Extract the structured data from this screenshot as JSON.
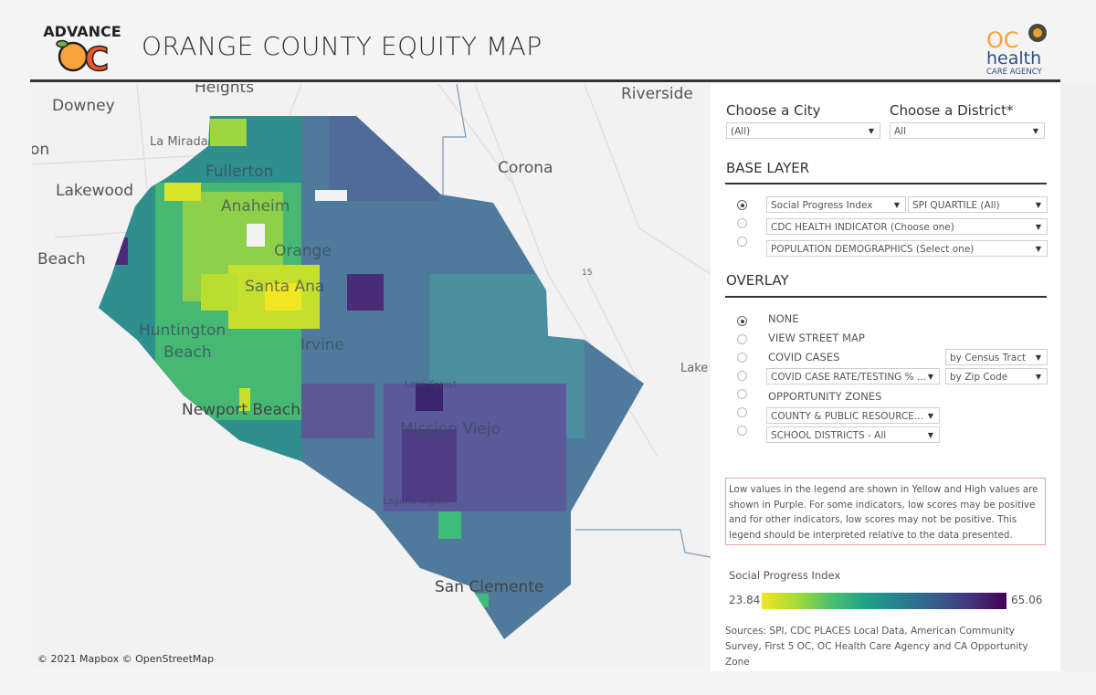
{
  "header": {
    "logo_text": "ADVANCE OC",
    "title": "ORANGE COUNTY EQUITY MAP",
    "agency_logo_text": "OC health CARE AGENCY"
  },
  "map": {
    "labels": {
      "heights": "Heights",
      "downey": "Downey",
      "la_mirada": "La Mirada",
      "on": "on",
      "lakewood": "Lakewood",
      "beach": "Beach",
      "riverside": "Riverside",
      "corona": "Corona",
      "lake_e": "Lake E",
      "fullerton": "Fullerton",
      "anaheim": "Anaheim",
      "orange": "Orange",
      "santa_ana": "Santa Ana",
      "huntington_beach_1": "Huntington",
      "huntington_beach_2": "Beach",
      "irvine": "Irvine",
      "newport_beach": "Newport Beach",
      "lake_forest": "Lake Forest",
      "mission_viejo": "Mission Viejo",
      "laguna_niguel": "Laguna Niguel",
      "san_clemente": "San Clemente",
      "i15": "15"
    },
    "attribution": "© 2021 Mapbox  © OpenStreetMap"
  },
  "filters": {
    "city_label": "Choose a City",
    "city_value": "(All)",
    "district_label": "Choose a District*",
    "district_value": "All"
  },
  "base_layer": {
    "title": "BASE LAYER",
    "options": [
      {
        "selected": true,
        "dropdown": "Social Progress Index",
        "dropdown2": "SPI QUARTILE (All)"
      },
      {
        "selected": false,
        "dropdown": "CDC HEALTH INDICATOR (Choose one)"
      },
      {
        "selected": false,
        "dropdown": "POPULATION DEMOGRAPHICS (Select one)"
      }
    ]
  },
  "overlay": {
    "title": "OVERLAY",
    "options": [
      {
        "selected": true,
        "label": "NONE"
      },
      {
        "selected": false,
        "label": "VIEW STREET MAP"
      },
      {
        "selected": false,
        "label": "COVID CASES",
        "dropdown2": "by Census Tract"
      },
      {
        "selected": false,
        "dropdown": "COVID CASE RATE/TESTING % ...",
        "dropdown2": "by Zip Code"
      },
      {
        "selected": false,
        "label": "OPPORTUNITY ZONES"
      },
      {
        "selected": false,
        "dropdown": "COUNTY & PUBLIC RESOURCE..."
      },
      {
        "selected": false,
        "dropdown": "SCHOOL DISTRICTS - All"
      }
    ]
  },
  "note": "Low values in the legend are shown in Yellow and High values are shown in Purple. For some indicators, low scores may be positive and for other indicators, low scores may not be positive. This legend should be interpreted relative to the data presented.",
  "legend": {
    "title": "Social Progress Index",
    "min": "23.84",
    "max": "65.06",
    "low_color": "#f5e51f",
    "high_color": "#440154"
  },
  "sources": "Sources: SPI, CDC PLACES Local Data, American Community Survey, First 5 OC, OC Health Care Agency and CA Opportunity Zone"
}
